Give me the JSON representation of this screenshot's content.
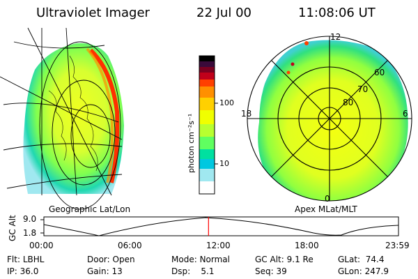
{
  "header": {
    "instrument": "Ultraviolet Imager",
    "date": "22 Jul 00",
    "time": "11:08:06 UT"
  },
  "colorbar": {
    "unit_label": "photon cm⁻²s⁻¹",
    "ticks": [
      "100",
      "10"
    ],
    "colors": [
      "#000000",
      "#3a0a3a",
      "#7a0020",
      "#c0001a",
      "#ff4000",
      "#ff9000",
      "#ffd000",
      "#f0ff00",
      "#b8ff30",
      "#60ff60",
      "#00e0a0",
      "#00c8e0",
      "#a0e8f0",
      "#ffffff"
    ]
  },
  "left_panel": {
    "label": "Geographic Lat/Lon"
  },
  "right_panel": {
    "label": "Apex MLat/MLT",
    "mlt_labels": [
      "12",
      "18",
      "6",
      "0"
    ],
    "mlat_labels": [
      "60",
      "70",
      "80"
    ]
  },
  "altitude_plot": {
    "ylabel": "GC Alt",
    "yticks": [
      "9.0",
      "1.8"
    ],
    "xticks": [
      "00:00",
      "06:00",
      "12:00",
      "18:00",
      "23:59"
    ],
    "current_time_marker_hours": 11.135,
    "marker_color": "#ff0000"
  },
  "info": {
    "row1": [
      {
        "key": "Flt:",
        "value": "LBHL"
      },
      {
        "key": "Door:",
        "value": "Open"
      },
      {
        "key": "Mode:",
        "value": "Normal"
      },
      {
        "key": "GC Alt:",
        "value": "9.1 Re"
      },
      {
        "key": "GLat:",
        "value": "74.4"
      }
    ],
    "row2": [
      {
        "key": "IP:",
        "value": "36.0"
      },
      {
        "key": "Gain:",
        "value": "13"
      },
      {
        "key": "Dsp:",
        "value": "5.1"
      },
      {
        "key": "Seq:",
        "value": "39"
      },
      {
        "key": "GLon:",
        "value": "247.9"
      }
    ]
  }
}
